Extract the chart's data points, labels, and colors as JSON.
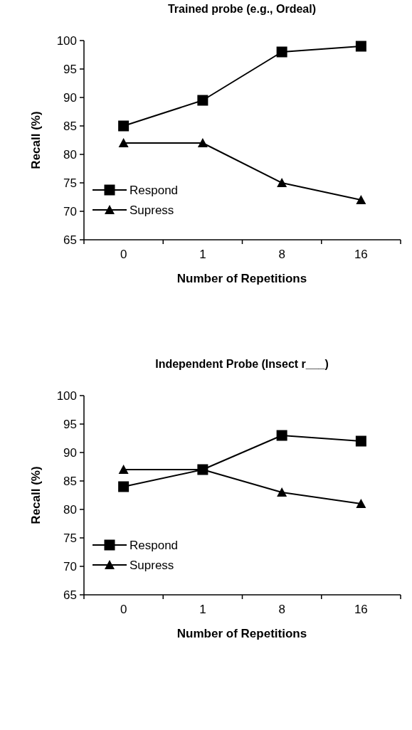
{
  "chart_data": [
    {
      "type": "line",
      "title": "Trained probe (e.g., Ordeal)",
      "xlabel": "Number of Repetitions",
      "ylabel": "Recall (%)",
      "categories": [
        "0",
        "1",
        "8",
        "16"
      ],
      "ylim": [
        65,
        100
      ],
      "yticks": [
        65,
        70,
        75,
        80,
        85,
        90,
        95,
        100
      ],
      "grid": false,
      "legend": "bottom left",
      "series": [
        {
          "name": "Respond",
          "color": "#000000",
          "marker": "square",
          "values": [
            85,
            89.5,
            98,
            99
          ]
        },
        {
          "name": "Supress",
          "color": "#000000",
          "marker": "triangle",
          "values": [
            82,
            82,
            75,
            72
          ]
        }
      ]
    },
    {
      "type": "line",
      "title": "Independent Probe (Insect r___)",
      "xlabel": "Number of Repetitions",
      "ylabel": "Recall (%)",
      "categories": [
        "0",
        "1",
        "8",
        "16"
      ],
      "ylim": [
        65,
        100
      ],
      "yticks": [
        65,
        70,
        75,
        80,
        85,
        90,
        95,
        100
      ],
      "grid": false,
      "legend": "bottom left",
      "series": [
        {
          "name": "Respond",
          "color": "#000000",
          "marker": "square",
          "values": [
            84,
            87,
            93,
            92
          ]
        },
        {
          "name": "Supress",
          "color": "#000000",
          "marker": "triangle",
          "values": [
            87,
            87,
            83,
            81
          ]
        }
      ]
    }
  ]
}
